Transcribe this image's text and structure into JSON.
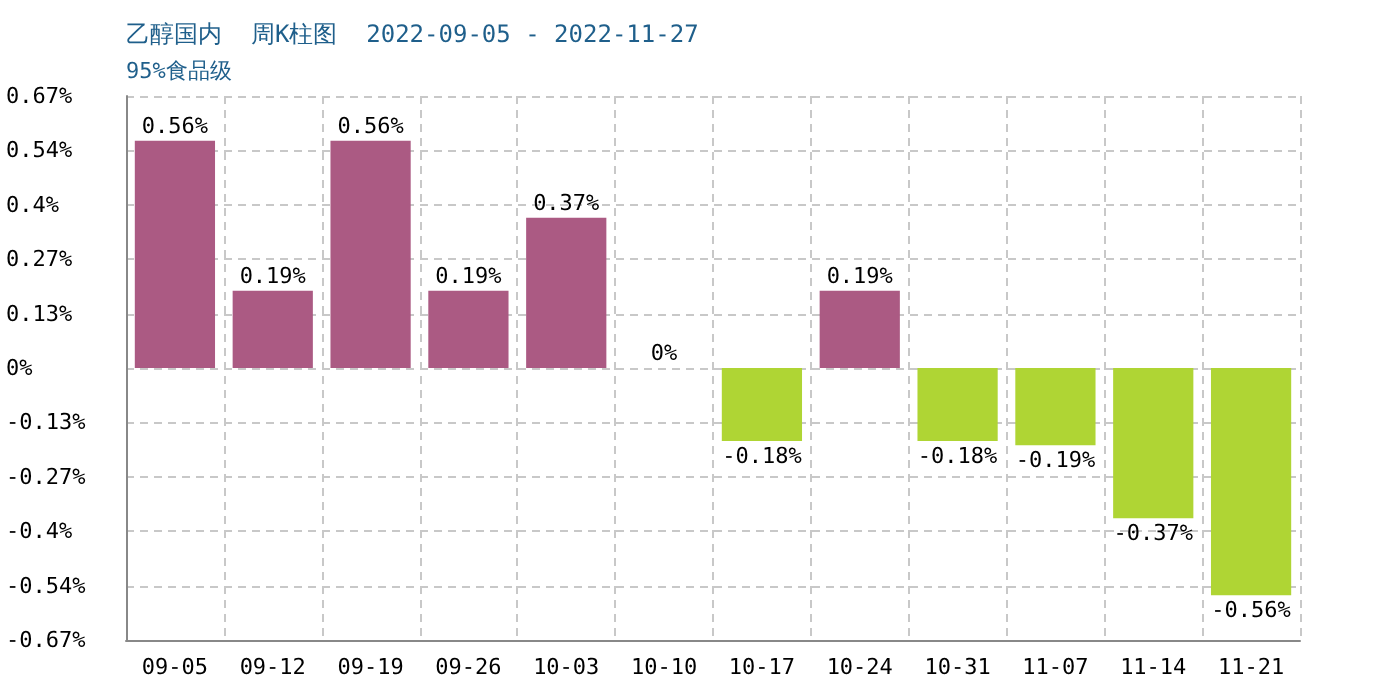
{
  "chart_data": {
    "type": "bar",
    "title": "乙醇国内  周K柱图  2022-09-05 - 2022-11-27",
    "subtitle": "95%食品级",
    "categories": [
      "09-05",
      "09-12",
      "09-19",
      "09-26",
      "10-03",
      "10-10",
      "10-17",
      "10-24",
      "10-31",
      "11-07",
      "11-14",
      "11-21"
    ],
    "values": [
      0.56,
      0.19,
      0.56,
      0.19,
      0.37,
      0,
      -0.18,
      0.19,
      -0.18,
      -0.19,
      -0.37,
      -0.56
    ],
    "value_labels": [
      "0.56%",
      "0.19%",
      "0.56%",
      "0.19%",
      "0.37%",
      "0%",
      "-0.18%",
      "0.19%",
      "-0.18%",
      "-0.19%",
      "-0.37%",
      "-0.56%"
    ],
    "colors": [
      "#ab5a83",
      "#ab5a83",
      "#ab5a83",
      "#ab5a83",
      "#ab5a83",
      "#ab5a83",
      "#afd534",
      "#ab5a83",
      "#afd534",
      "#afd534",
      "#afd534",
      "#afd534"
    ],
    "ylim": [
      -0.67,
      0.67
    ],
    "yticks": [
      {
        "value": -0.67,
        "label": "-0.67%"
      },
      {
        "value": -0.536,
        "label": "-0.54%"
      },
      {
        "value": -0.402,
        "label": "-0.4%"
      },
      {
        "value": -0.268,
        "label": "-0.27%"
      },
      {
        "value": -0.134,
        "label": "-0.13%"
      },
      {
        "value": 0,
        "label": "0%"
      },
      {
        "value": 0.134,
        "label": "0.13%"
      },
      {
        "value": 0.268,
        "label": "0.27%"
      },
      {
        "value": 0.402,
        "label": "0.4%"
      },
      {
        "value": 0.536,
        "label": "0.54%"
      },
      {
        "value": 0.67,
        "label": "0.67%"
      }
    ],
    "grid": true
  }
}
